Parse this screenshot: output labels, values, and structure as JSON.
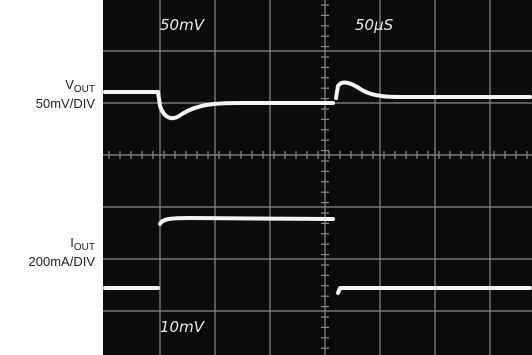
{
  "labels": {
    "vout": {
      "main": "V",
      "sub": "OUT",
      "scale": "50mV/DIV"
    },
    "iout": {
      "main": "I",
      "sub": "OUT",
      "scale": "200mA/DIV"
    }
  },
  "screen": {
    "top_left": "50mV",
    "top_right": "50μS",
    "bottom_left": "10mV"
  }
}
